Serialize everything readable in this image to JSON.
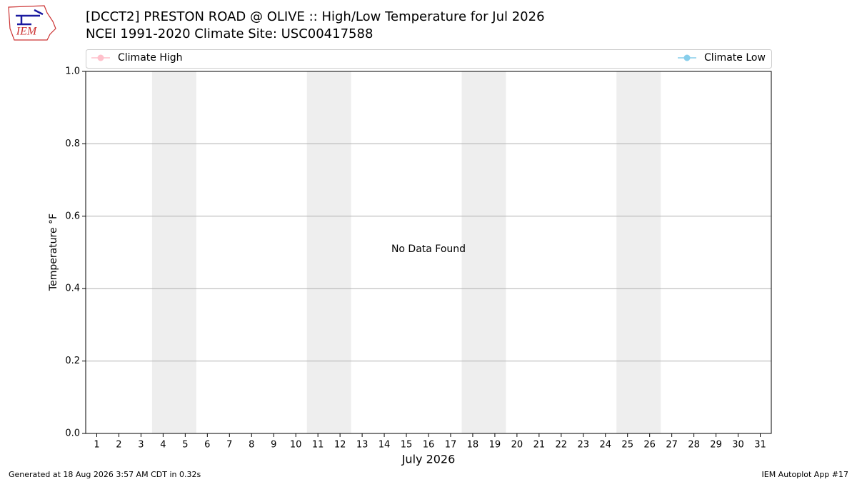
{
  "logo_text": "IEM",
  "chart_data": {
    "type": "line",
    "title": "[DCCT2] PRESTON ROAD @ OLIVE :: High/Low Temperature for Jul 2026",
    "subtitle": "NCEI 1991-2020 Climate Site: USC00417588",
    "xlabel": "July 2026",
    "ylabel": "Temperature °F",
    "annotation": "No Data Found",
    "x": [
      1,
      2,
      3,
      4,
      5,
      6,
      7,
      8,
      9,
      10,
      11,
      12,
      13,
      14,
      15,
      16,
      17,
      18,
      19,
      20,
      21,
      22,
      23,
      24,
      25,
      26,
      27,
      28,
      29,
      30,
      31
    ],
    "xlim": [
      0.5,
      31.5
    ],
    "xticks": [
      1,
      2,
      3,
      4,
      5,
      6,
      7,
      8,
      9,
      10,
      11,
      12,
      13,
      14,
      15,
      16,
      17,
      18,
      19,
      20,
      21,
      22,
      23,
      24,
      25,
      26,
      27,
      28,
      29,
      30,
      31
    ],
    "ylim": [
      0,
      1
    ],
    "yticks": [
      {
        "value": 0,
        "label": "0.0"
      },
      {
        "value": 0.2,
        "label": "0.2"
      },
      {
        "value": 0.4,
        "label": "0.4"
      },
      {
        "value": 0.6,
        "label": "0.6"
      },
      {
        "value": 0.8,
        "label": "0.8"
      },
      {
        "value": 1,
        "label": "1.0"
      }
    ],
    "grid": true,
    "weekend_bands": [
      [
        3.5,
        5.5
      ],
      [
        10.5,
        12.5
      ],
      [
        17.5,
        19.5
      ],
      [
        24.5,
        26.5
      ]
    ],
    "band_color": "#eeeeee",
    "series": [
      {
        "name": "Climate High",
        "color": "#ffc0cb",
        "values": [
          null,
          null,
          null,
          null,
          null,
          null,
          null,
          null,
          null,
          null,
          null,
          null,
          null,
          null,
          null,
          null,
          null,
          null,
          null,
          null,
          null,
          null,
          null,
          null,
          null,
          null,
          null,
          null,
          null,
          null,
          null
        ]
      },
      {
        "name": "Climate Low",
        "color": "#87ceeb",
        "values": [
          null,
          null,
          null,
          null,
          null,
          null,
          null,
          null,
          null,
          null,
          null,
          null,
          null,
          null,
          null,
          null,
          null,
          null,
          null,
          null,
          null,
          null,
          null,
          null,
          null,
          null,
          null,
          null,
          null,
          null,
          null
        ]
      }
    ],
    "footer_left": "Generated at 18 Aug 2026 3:57 AM CDT in 0.32s",
    "footer_right": "IEM Autoplot App #17"
  }
}
